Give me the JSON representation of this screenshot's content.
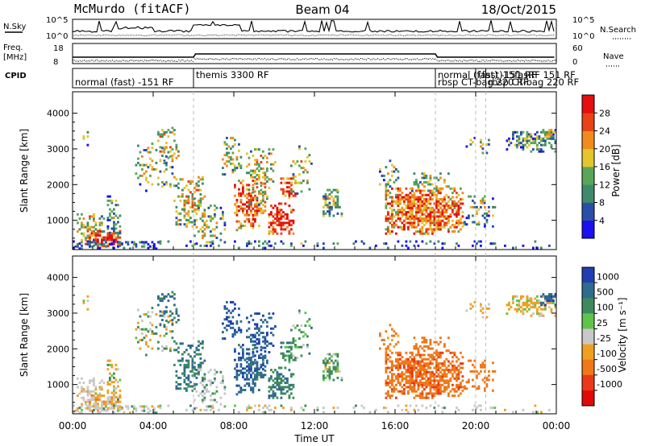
{
  "header": {
    "station": "McMurdo (fitACF)",
    "beam": "Beam 04",
    "date": "18/Oct/2015"
  },
  "labels": {
    "nsky": "N.Sky",
    "nsearch": "N.Search",
    "freq": "Freq.",
    "freq_unit": "[MHz]",
    "nave": "Nave",
    "cpid": "CPID",
    "slant_range": "Slant Range [km]",
    "time": "Time UT"
  },
  "noise_ticks": {
    "left_top": "10^5",
    "left_bottom": "10^0",
    "right_top": "10^5",
    "right_bottom": "10^0"
  },
  "freq_ticks": {
    "left_top": "18",
    "left_bottom": "8",
    "right_top": "60",
    "right_bottom": "0"
  },
  "cpid_modes": [
    {
      "label": "normal (fast) -151 RF",
      "start": 0.0
    },
    {
      "label": "themis 3300 RF",
      "start": 6.0
    },
    {
      "label": "normal (fast) -151 RF",
      "start": 18.0
    },
    {
      "label": "rbsp CT-bag 220 RF",
      "start": 18.0
    },
    {
      "label": "(fast)15fasRF 151 RF",
      "start": 20.0
    },
    {
      "label": "rbsp CT-bag 220 RF",
      "start": 20.5
    }
  ],
  "chart_data": [
    {
      "type": "heatmap",
      "name": "power",
      "xlabel": "Time UT",
      "ylabel": "Slant Range [km]",
      "xlim": [
        0,
        24
      ],
      "ylim": [
        180,
        4600
      ],
      "yticks": [
        "1000",
        "2000",
        "3000",
        "4000"
      ],
      "colorbar": {
        "label": "Power [dB]",
        "ticks": [
          "4",
          "8",
          "12",
          "16",
          "20",
          "24",
          "28"
        ],
        "colors": [
          "#1a10f0",
          "#2a4fa8",
          "#3f8a6a",
          "#59a659",
          "#e3c52d",
          "#f08c1c",
          "#e84216",
          "#e50f0f"
        ]
      }
    },
    {
      "type": "heatmap",
      "name": "velocity",
      "xlabel": "Time UT",
      "ylabel": "Slant Range [km]",
      "xlim": [
        0,
        24
      ],
      "ylim": [
        180,
        4600
      ],
      "yticks": [
        "1000",
        "2000",
        "3000",
        "4000"
      ],
      "xticks": [
        "00:00",
        "04:00",
        "08:00",
        "12:00",
        "16:00",
        "20:00",
        "00:00"
      ],
      "colorbar": {
        "label": "Velocity [m s⁻¹]",
        "ticks": [
          "1000",
          "500",
          "100",
          "25",
          "-25",
          "-100",
          "-500",
          "-1000"
        ],
        "colors": [
          "#1f3fb0",
          "#2f6a8f",
          "#3e8a5e",
          "#5ec44a",
          "#c8c8c8",
          "#f0a020",
          "#f07818",
          "#e83a18",
          "#e00a0a"
        ]
      }
    }
  ]
}
